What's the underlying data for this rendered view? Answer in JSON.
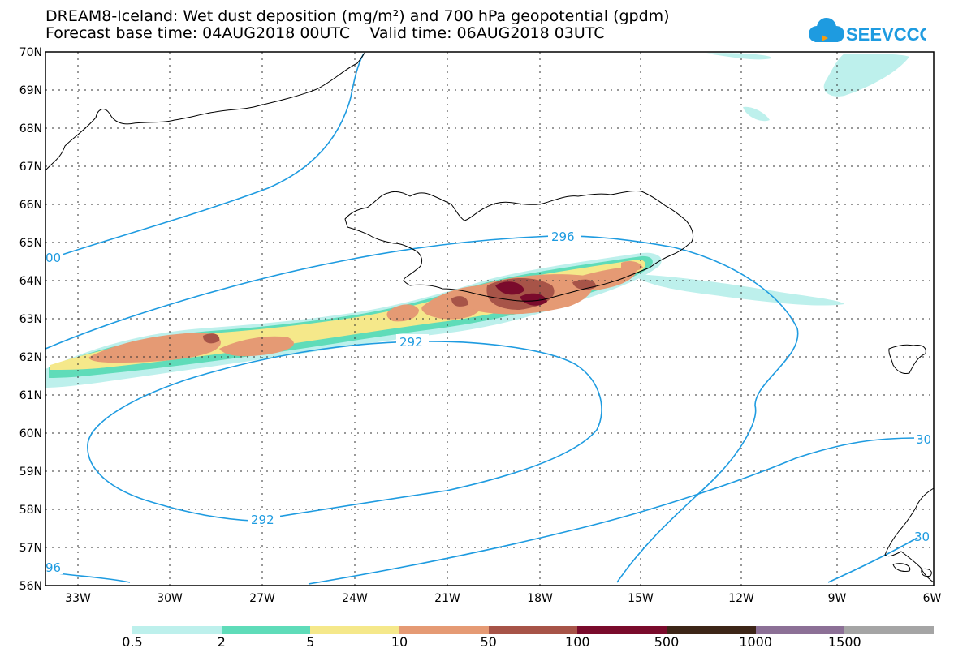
{
  "title_line1": "DREAM8-Iceland: Wet dust deposition (mg/m²) and 700 hPa geopotential (gpdm)",
  "title_line2": "Forecast base time: 04AUG2018 00UTC    Valid time: 06AUG2018 03UTC",
  "logo_text": "SEEVCCC",
  "lat_labels": [
    "70N",
    "69N",
    "68N",
    "67N",
    "66N",
    "65N",
    "64N",
    "63N",
    "62N",
    "61N",
    "60N",
    "59N",
    "58N",
    "57N",
    "56N"
  ],
  "lon_labels": [
    "33W",
    "30W",
    "27W",
    "24W",
    "21W",
    "18W",
    "15W",
    "12W",
    "9W",
    "6W"
  ],
  "contour_labels": [
    "296",
    "292",
    "292",
    "00",
    "96",
    "30",
    "30"
  ],
  "legend": {
    "colors": [
      "#bdf0ec",
      "#5fdcb9",
      "#f5e88a",
      "#e59a74",
      "#a75448",
      "#7a0b2c",
      "#3d2618",
      "#8c7096",
      "#a5a5a5"
    ],
    "labels": [
      "0.5",
      "2",
      "5",
      "10",
      "50",
      "100",
      "500",
      "1000",
      "1500"
    ]
  },
  "colors": {
    "contour": "#1e9be0",
    "land_outline": "#000000"
  }
}
